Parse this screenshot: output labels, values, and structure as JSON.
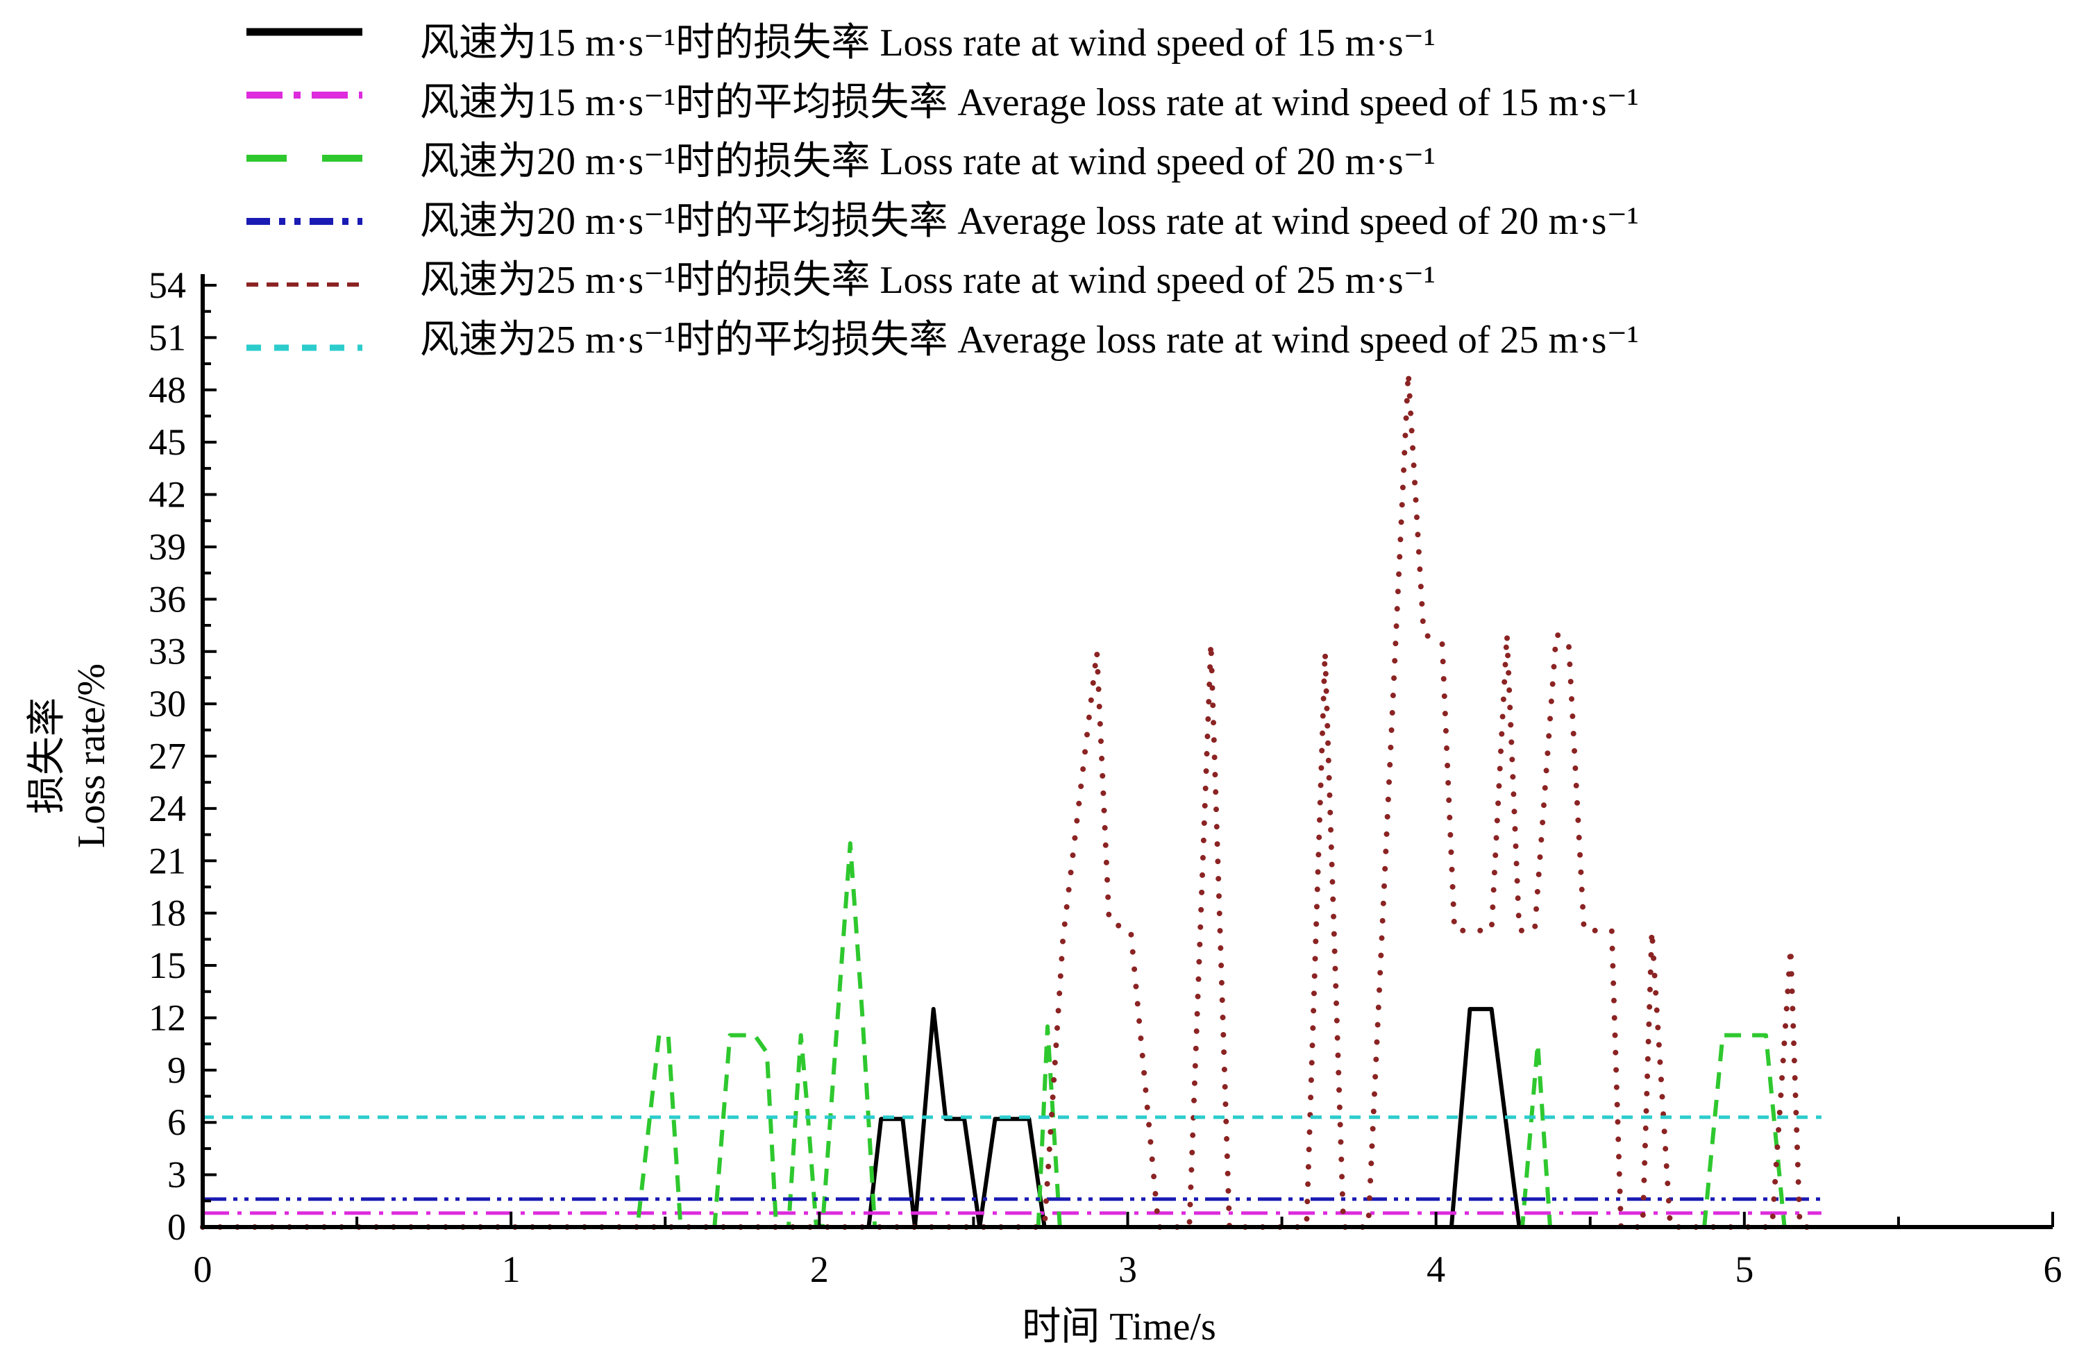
{
  "chart_data": {
    "type": "line",
    "xlabel": "时间 Time/s",
    "ylabel": [
      "损失率",
      "Loss rate/%"
    ],
    "xlim": [
      0,
      6
    ],
    "ylim": [
      0,
      54
    ],
    "x_ticks": [
      0,
      1,
      2,
      3,
      4,
      5,
      6
    ],
    "y_ticks": [
      0,
      3,
      6,
      9,
      12,
      15,
      18,
      21,
      24,
      27,
      30,
      33,
      36,
      39,
      42,
      45,
      48,
      51,
      54
    ],
    "grid": false,
    "legend_position": "top",
    "series": [
      {
        "name": "风速为15 m·s⁻¹时的损失率 Loss rate at wind speed of 15 m·s⁻¹",
        "color": "#000000",
        "line_style": "solid",
        "x": [
          0,
          2.16,
          2.2,
          2.27,
          2.31,
          2.37,
          2.41,
          2.47,
          2.52,
          2.57,
          2.68,
          2.73,
          4.05,
          4.11,
          4.18,
          4.27,
          5.25
        ],
        "y": [
          0,
          0,
          6.2,
          6.2,
          0,
          12.5,
          6.2,
          6.2,
          0,
          6.2,
          6.2,
          0,
          0,
          12.5,
          12.5,
          0,
          0
        ]
      },
      {
        "name": "风速为15 m·s⁻¹时的平均损失率 Average loss rate at wind speed of 15 m·s⁻¹",
        "color": "#dd2bdd",
        "line_style": "dash-dot",
        "x": [
          0,
          5.25
        ],
        "y": [
          0.8,
          0.8
        ]
      },
      {
        "name": "风速为20 m·s⁻¹时的损失率 Loss rate at wind speed of 20 m·s⁻¹",
        "color": "#2ec82e",
        "line_style": "dashed",
        "x": [
          0,
          1.41,
          1.48,
          1.51,
          1.55,
          1.66,
          1.71,
          1.79,
          1.83,
          1.86,
          1.9,
          1.94,
          1.96,
          1.99,
          2.01,
          2.1,
          2.14,
          2.18,
          2.71,
          2.74,
          2.78,
          4.28,
          4.33,
          4.37,
          4.87,
          4.93,
          5.07,
          5.13,
          5.25
        ],
        "y": [
          0,
          0,
          11,
          11,
          0,
          0,
          11,
          11,
          10,
          0,
          0,
          11,
          7,
          0,
          0,
          22,
          12,
          0,
          0,
          11.5,
          0,
          0,
          10.5,
          0,
          0,
          11,
          11,
          0,
          0
        ]
      },
      {
        "name": "风速为20 m·s⁻¹时的平均损失率 Average loss rate at wind speed of 20 m·s⁻¹",
        "color": "#1a1ab4",
        "line_style": "dash-dot-dot",
        "x": [
          0,
          5.25
        ],
        "y": [
          1.6,
          1.6
        ]
      },
      {
        "name": "风速为25 m·s⁻¹时的损失率 Loss rate at wind speed of 25 m·s⁻¹",
        "color": "#8b2323",
        "line_style": "dotted",
        "x": [
          0,
          2.73,
          2.79,
          2.9,
          2.94,
          3.01,
          3.1,
          3.2,
          3.27,
          3.33,
          3.58,
          3.64,
          3.7,
          3.78,
          3.91,
          3.96,
          4.02,
          4.06,
          4.18,
          4.23,
          4.27,
          4.32,
          4.39,
          4.43,
          4.48,
          4.57,
          4.6,
          4.67,
          4.7,
          4.76,
          5.09,
          5.15,
          5.18,
          5.25
        ],
        "y": [
          0,
          0,
          16.5,
          33,
          17.5,
          17,
          0,
          0,
          33.5,
          0,
          0,
          33,
          0,
          0,
          49,
          34,
          33.5,
          17,
          17,
          34,
          17,
          17,
          34,
          33.5,
          17,
          17,
          0,
          0,
          17,
          0,
          0,
          16,
          0,
          0
        ]
      },
      {
        "name": "风速为25 m·s⁻¹时的平均损失率 Average loss rate at wind speed of 25 m·s⁻¹",
        "color": "#2ccccc",
        "line_style": "short-dashed",
        "x": [
          0,
          5.25
        ],
        "y": [
          6.3,
          6.3
        ]
      }
    ]
  }
}
